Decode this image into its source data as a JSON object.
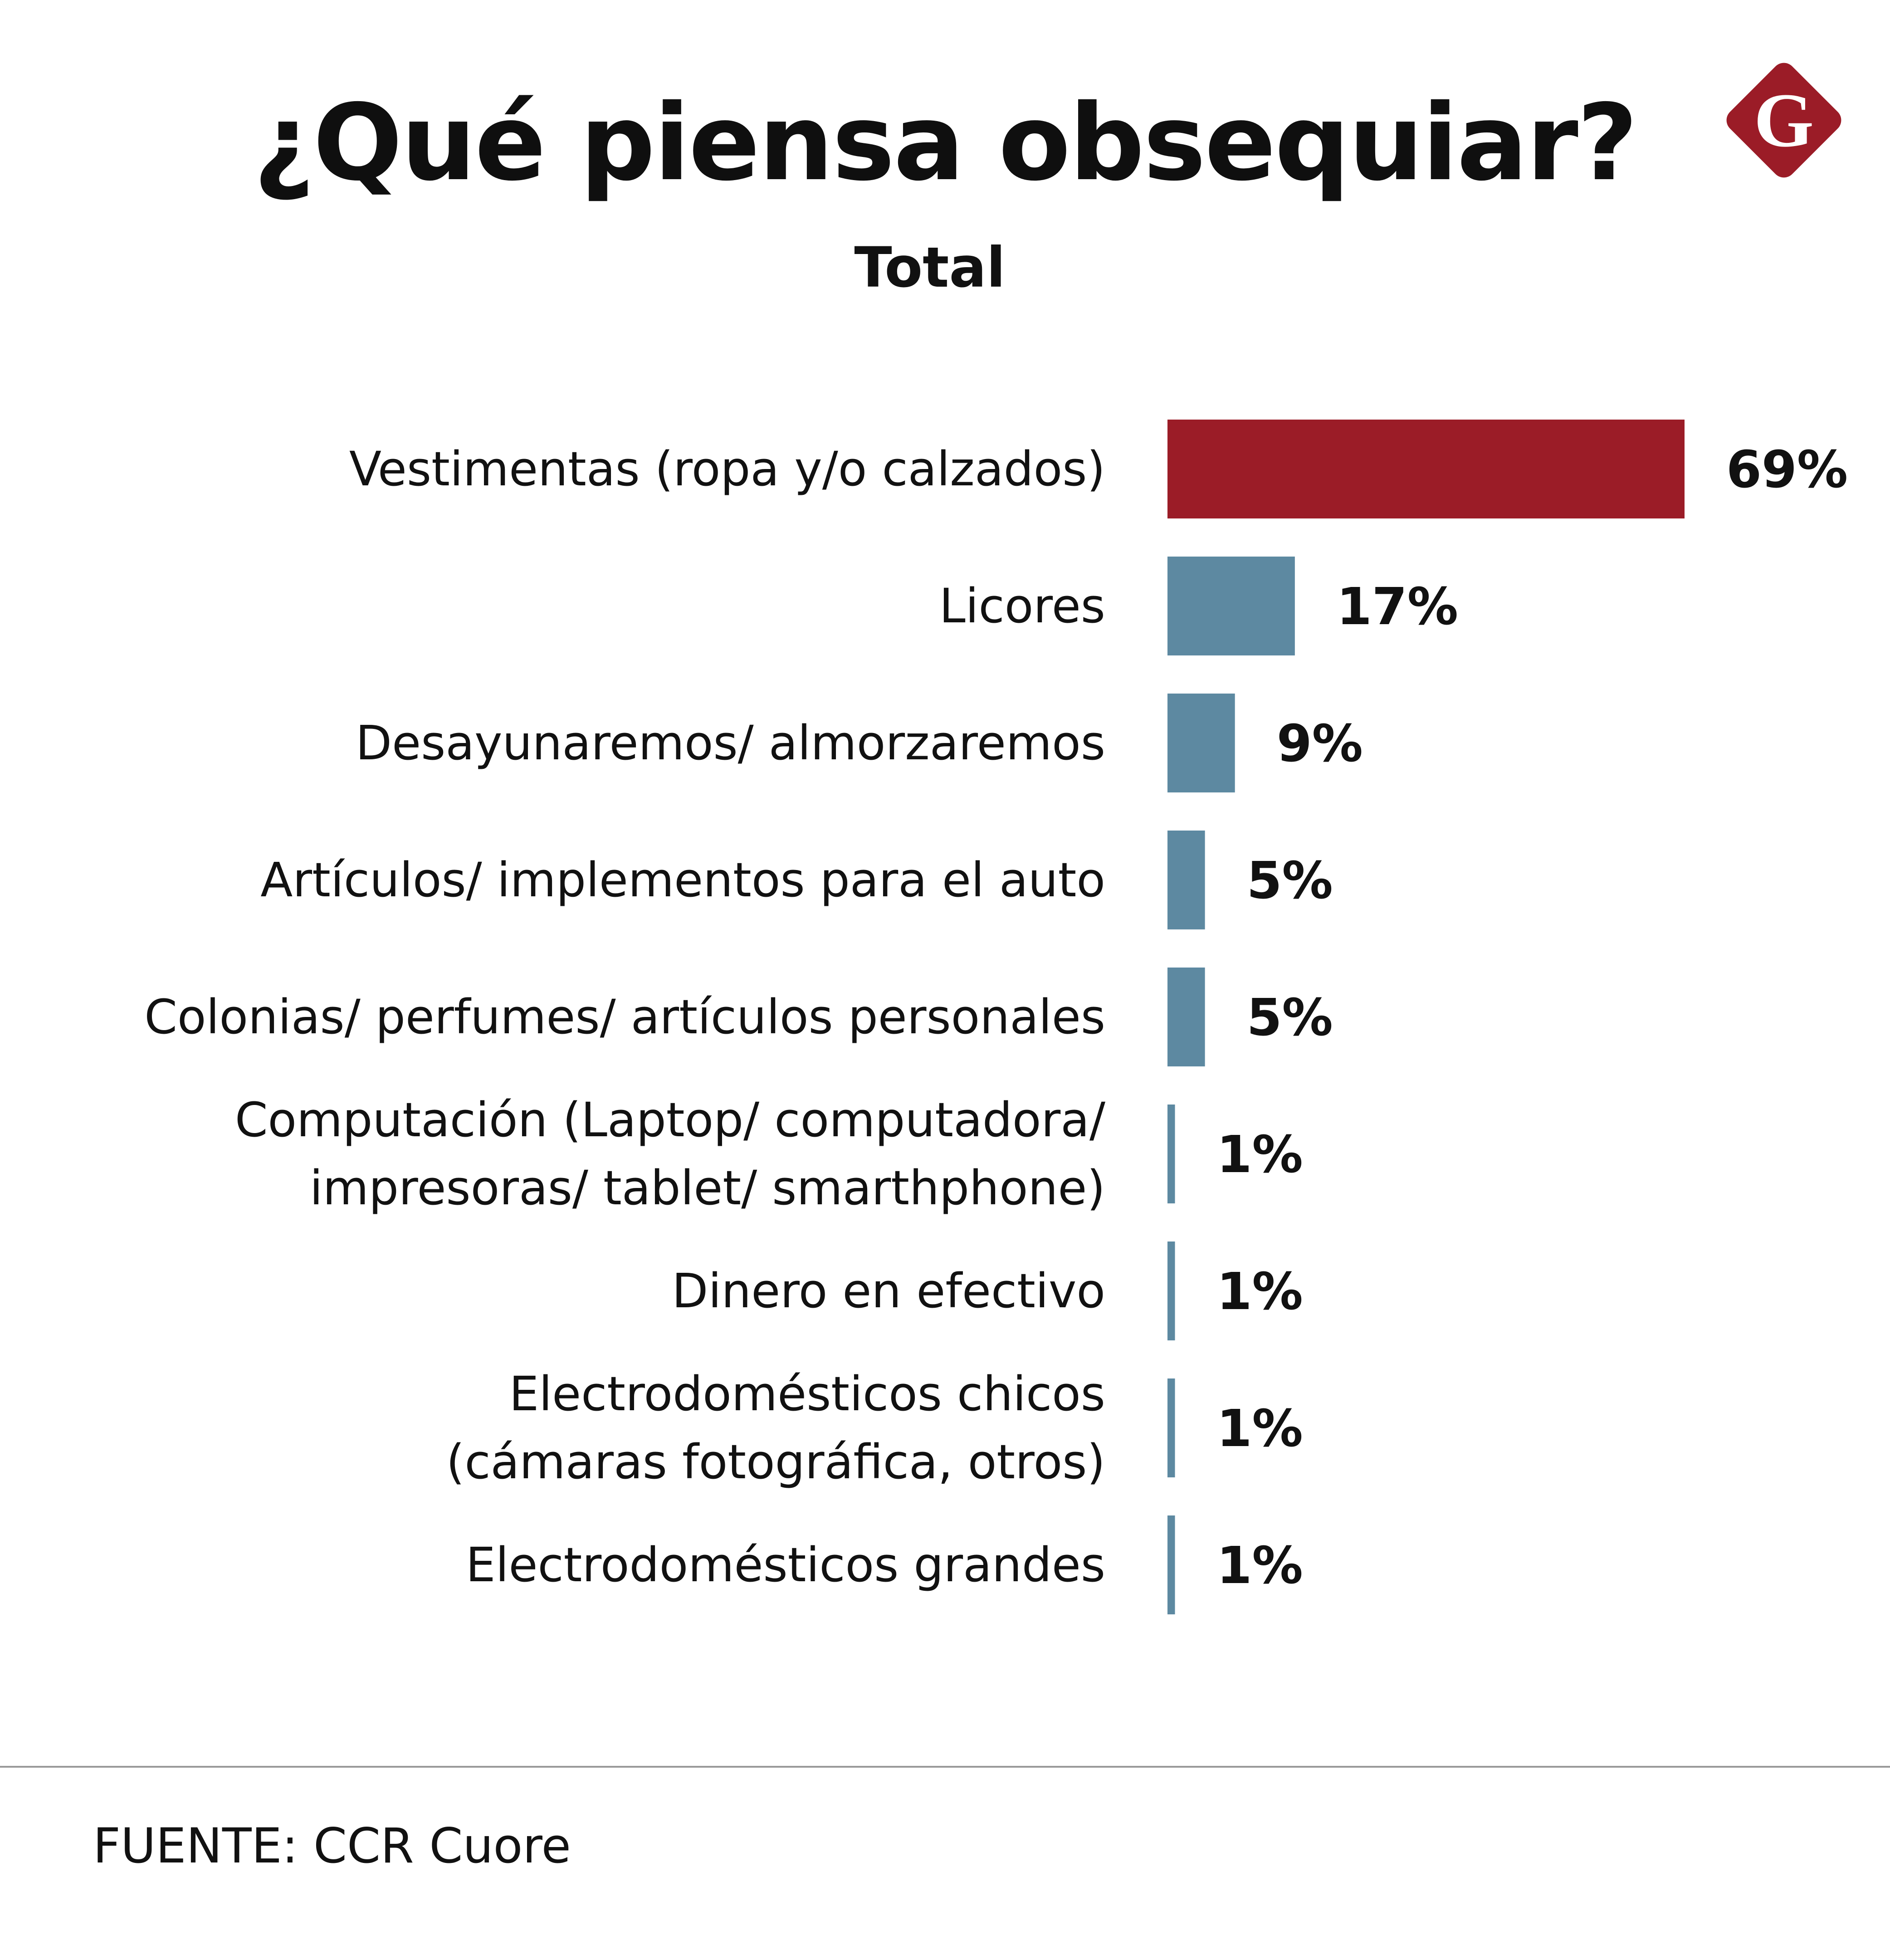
{
  "header": {
    "title": "¿Qué piensa obsequiar?",
    "subtitle": "Total",
    "logo_letter": "G"
  },
  "footer": {
    "source": "FUENTE: CCR Cuore"
  },
  "colors": {
    "highlight_bar": "#9b1c27",
    "bar": "#5d89a1",
    "logo": "#9b1c27",
    "divider": "#9a9a9a"
  },
  "chart_data": {
    "type": "bar",
    "orientation": "horizontal",
    "title": "¿Qué piensa obsequiar?",
    "subtitle": "Total",
    "unit": "%",
    "categories": [
      [
        "Vestimentas (ropa y/o calzados)"
      ],
      [
        "Licores"
      ],
      [
        "Desayunaremos/ almorzaremos"
      ],
      [
        "Artículos/ implementos para el auto"
      ],
      [
        "Colonias/ perfumes/ artículos personales"
      ],
      [
        "Computación (Laptop/ computadora/",
        "impresoras/ tablet/ smarthphone)"
      ],
      [
        "Dinero en efectivo"
      ],
      [
        "Electrodomésticos chicos",
        "(cámaras fotográfica, otros)"
      ],
      [
        "Electrodomésticos grandes"
      ]
    ],
    "values": [
      69,
      17,
      9,
      5,
      5,
      1,
      1,
      1,
      1
    ],
    "value_labels": [
      "69%",
      "17%",
      "9%",
      "5%",
      "5%",
      "1%",
      "1%",
      "1%",
      "1%"
    ],
    "highlight_index": 0,
    "xlim": [
      0,
      69
    ],
    "grid": false,
    "legend": "none"
  }
}
